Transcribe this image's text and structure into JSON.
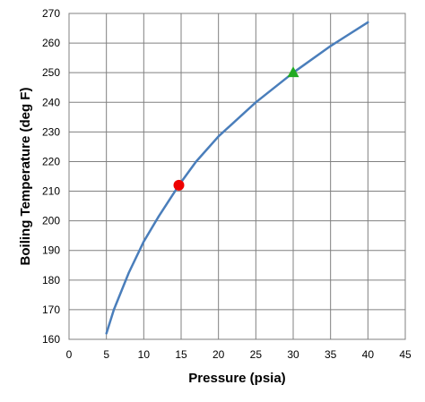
{
  "chart_data": {
    "type": "line",
    "title": "",
    "xlabel": "Pressure (psia)",
    "ylabel": "Boiling Temperature (deg F)",
    "xlim": [
      0,
      45
    ],
    "ylim": [
      160,
      270
    ],
    "xticks": [
      0,
      5,
      10,
      15,
      20,
      25,
      30,
      35,
      40,
      45
    ],
    "yticks": [
      160,
      170,
      180,
      190,
      200,
      210,
      220,
      230,
      240,
      250,
      260,
      270
    ],
    "grid": true,
    "legend": "none",
    "series": [
      {
        "color": "#4a7ebb",
        "x": [
          5,
          6,
          8,
          10,
          12,
          14.7,
          17,
          20,
          25,
          30,
          35,
          40
        ],
        "y": [
          162,
          170,
          182.5,
          193,
          201.5,
          212,
          220,
          228.5,
          240,
          250,
          259,
          267
        ]
      }
    ],
    "markers": [
      {
        "shape": "circle",
        "color": "#ee0000",
        "x": 14.7,
        "y": 212
      },
      {
        "shape": "triangle",
        "color": "#22aa22",
        "x": 30,
        "y": 250
      }
    ]
  }
}
